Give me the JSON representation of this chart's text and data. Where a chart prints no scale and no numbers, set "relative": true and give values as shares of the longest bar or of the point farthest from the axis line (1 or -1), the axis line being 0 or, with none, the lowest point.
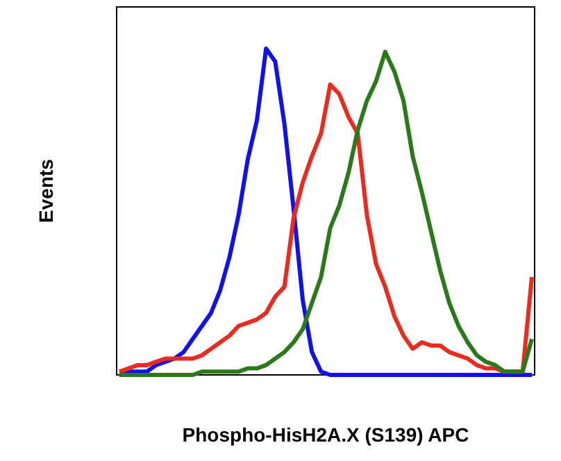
{
  "chart_data": {
    "type": "line",
    "xlabel": "Phospho-HisH2A.X (S139) APC",
    "ylabel": "Events",
    "relative": true,
    "line_style": "solid",
    "categories": [
      null,
      null,
      null,
      null,
      null,
      null,
      null,
      null,
      null,
      null,
      null,
      null,
      null,
      null,
      null,
      null,
      null,
      null,
      null,
      null,
      null,
      null,
      null,
      null,
      null,
      null,
      null,
      null,
      null,
      null,
      null,
      null,
      null,
      null,
      null,
      null,
      null,
      null,
      null,
      null,
      null,
      null,
      null,
      null,
      null,
      null
    ],
    "series": [
      {
        "color": "#1010f0",
        "values": [
          0.01,
          0.01,
          0.01,
          0.01,
          0.03,
          0.04,
          0.05,
          0.07,
          0.11,
          0.15,
          0.19,
          0.26,
          0.36,
          0.49,
          0.66,
          0.78,
          1,
          0.96,
          0.77,
          0.51,
          0.23,
          0.07,
          0.01,
          0,
          0,
          0,
          0,
          0,
          0,
          0,
          0,
          0,
          0,
          0,
          0,
          0,
          0,
          0,
          0,
          0,
          0,
          0,
          0,
          0,
          0,
          0
        ]
      },
      {
        "color": "#ee2a1f",
        "values": [
          0.01,
          0.02,
          0.03,
          0.03,
          0.04,
          0.05,
          0.05,
          0.05,
          0.05,
          0.06,
          0.08,
          0.1,
          0.12,
          0.15,
          0.16,
          0.17,
          0.19,
          0.24,
          0.27,
          0.48,
          0.59,
          0.67,
          0.74,
          0.89,
          0.86,
          0.79,
          0.74,
          0.49,
          0.34,
          0.27,
          0.18,
          0.12,
          0.08,
          0.1,
          0.09,
          0.09,
          0.07,
          0.06,
          0.05,
          0.03,
          0.02,
          0.02,
          0.01,
          0.01,
          0.01,
          0.3
        ]
      },
      {
        "color": "#2a7a1a",
        "values": [
          0,
          0,
          0,
          0,
          0,
          0,
          0,
          0,
          0,
          0.01,
          0.01,
          0.01,
          0.01,
          0.01,
          0.02,
          0.02,
          0.03,
          0.05,
          0.07,
          0.1,
          0.14,
          0.22,
          0.3,
          0.45,
          0.52,
          0.62,
          0.75,
          0.84,
          0.9,
          0.99,
          0.93,
          0.84,
          0.67,
          0.56,
          0.44,
          0.32,
          0.22,
          0.15,
          0.1,
          0.06,
          0.04,
          0.03,
          0.01,
          0.01,
          0.01,
          0.11
        ]
      }
    ]
  }
}
